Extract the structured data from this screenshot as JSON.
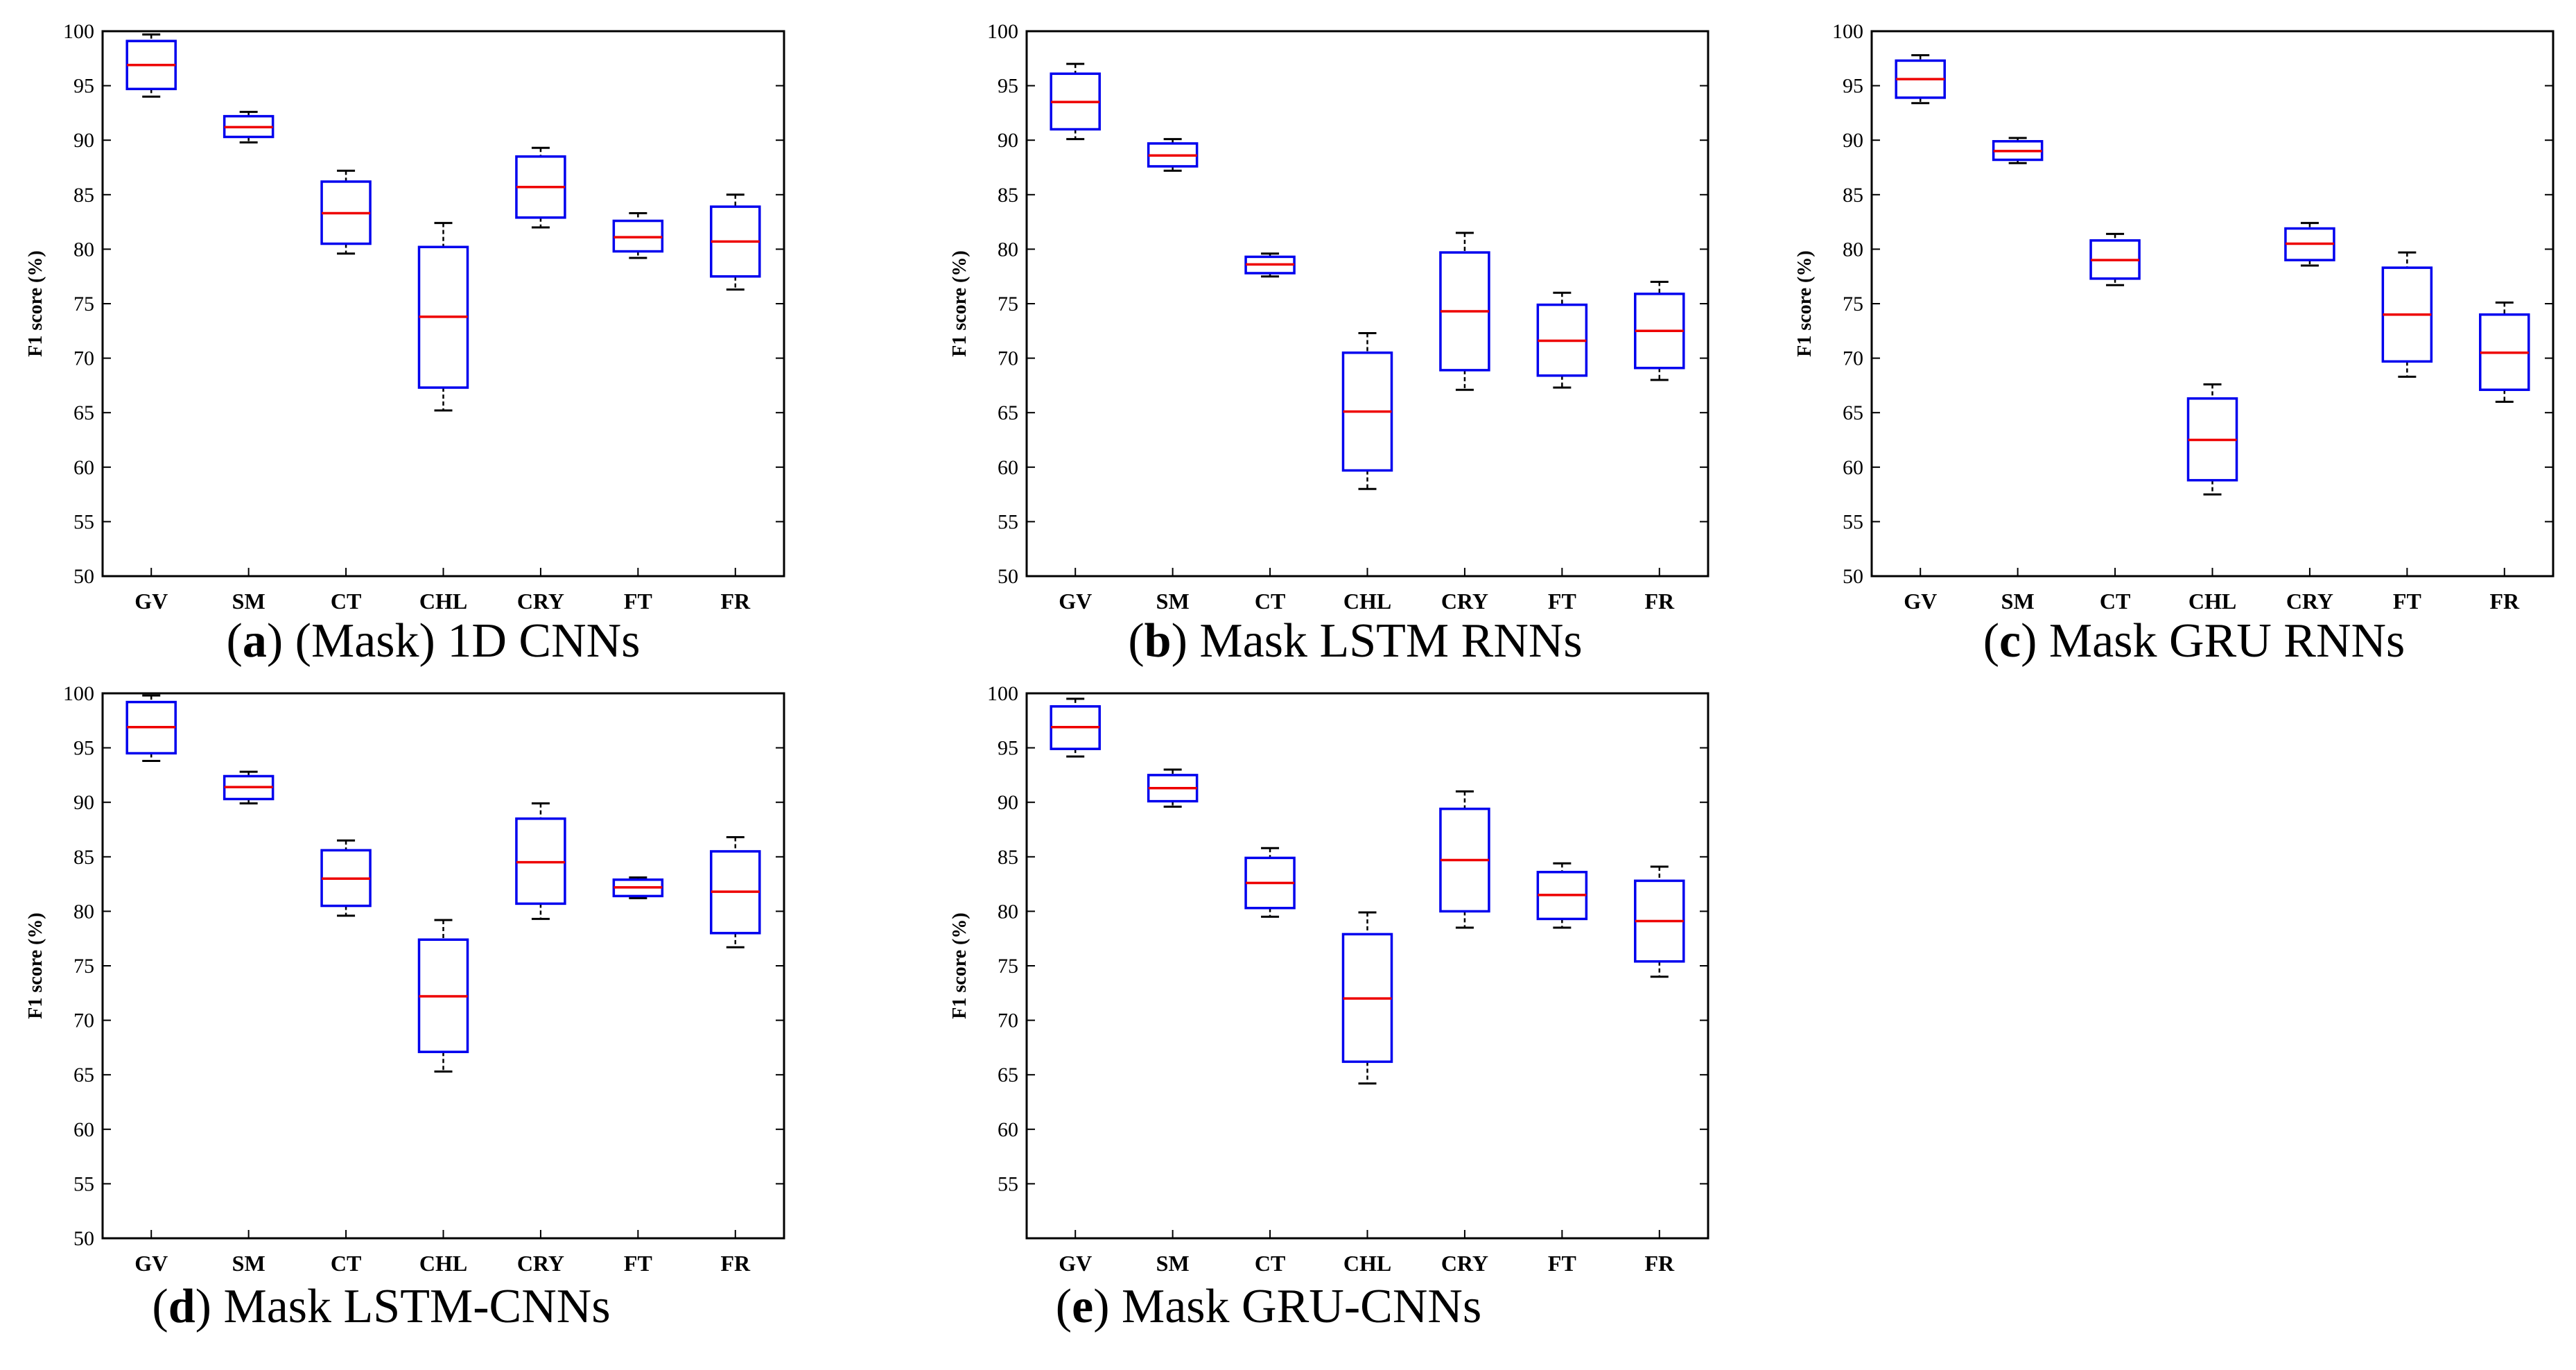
{
  "chart_data": [
    {
      "type": "boxplot",
      "letter": "a",
      "title": ") (Mask) 1D CNNs",
      "ylabel": "F1 score (%)",
      "ylim": [
        50,
        100
      ],
      "yticks": [
        50,
        55,
        60,
        65,
        70,
        75,
        80,
        85,
        90,
        95,
        100
      ],
      "categories": [
        "GV",
        "SM",
        "CT",
        "CHL",
        "CRY",
        "FT",
        "FR"
      ],
      "boxes": [
        {
          "min": 94.0,
          "q1": 94.7,
          "median": 96.9,
          "q3": 99.1,
          "max": 99.7
        },
        {
          "min": 89.8,
          "q1": 90.3,
          "median": 91.2,
          "q3": 92.2,
          "max": 92.6
        },
        {
          "min": 79.6,
          "q1": 80.5,
          "median": 83.3,
          "q3": 86.2,
          "max": 87.2
        },
        {
          "min": 65.2,
          "q1": 67.3,
          "median": 73.8,
          "q3": 80.2,
          "max": 82.4
        },
        {
          "min": 82.0,
          "q1": 82.9,
          "median": 85.7,
          "q3": 88.5,
          "max": 89.3
        },
        {
          "min": 79.2,
          "q1": 79.8,
          "median": 81.1,
          "q3": 82.6,
          "max": 83.3
        },
        {
          "min": 76.3,
          "q1": 77.5,
          "median": 80.7,
          "q3": 83.9,
          "max": 85.0
        }
      ]
    },
    {
      "type": "boxplot",
      "letter": "b",
      "title": ") Mask LSTM RNNs",
      "ylabel": "F1 score (%)",
      "ylim": [
        50,
        100
      ],
      "yticks": [
        50,
        55,
        60,
        65,
        70,
        75,
        80,
        85,
        90,
        95,
        100
      ],
      "categories": [
        "GV",
        "SM",
        "CT",
        "CHL",
        "CRY",
        "FT",
        "FR"
      ],
      "boxes": [
        {
          "min": 90.1,
          "q1": 91.0,
          "median": 93.5,
          "q3": 96.1,
          "max": 97.0
        },
        {
          "min": 87.2,
          "q1": 87.6,
          "median": 88.6,
          "q3": 89.7,
          "max": 90.1
        },
        {
          "min": 77.5,
          "q1": 77.8,
          "median": 78.6,
          "q3": 79.3,
          "max": 79.6
        },
        {
          "min": 58.0,
          "q1": 59.7,
          "median": 65.1,
          "q3": 70.5,
          "max": 72.3
        },
        {
          "min": 67.1,
          "q1": 68.9,
          "median": 74.3,
          "q3": 79.7,
          "max": 81.5
        },
        {
          "min": 67.3,
          "q1": 68.4,
          "median": 71.6,
          "q3": 74.9,
          "max": 76.0
        },
        {
          "min": 68.0,
          "q1": 69.1,
          "median": 72.5,
          "q3": 75.9,
          "max": 77.0
        }
      ]
    },
    {
      "type": "boxplot",
      "letter": "c",
      "title": ") Mask GRU RNNs",
      "ylabel": "F1 score (%)",
      "ylim": [
        50,
        100
      ],
      "yticks": [
        50,
        55,
        60,
        65,
        70,
        75,
        80,
        85,
        90,
        95,
        100
      ],
      "categories": [
        "GV",
        "SM",
        "CT",
        "CHL",
        "CRY",
        "FT",
        "FR"
      ],
      "boxes": [
        {
          "min": 93.4,
          "q1": 93.9,
          "median": 95.6,
          "q3": 97.3,
          "max": 97.8
        },
        {
          "min": 87.9,
          "q1": 88.2,
          "median": 89.0,
          "q3": 89.9,
          "max": 90.2
        },
        {
          "min": 76.7,
          "q1": 77.3,
          "median": 79.0,
          "q3": 80.8,
          "max": 81.4
        },
        {
          "min": 57.5,
          "q1": 58.8,
          "median": 62.5,
          "q3": 66.3,
          "max": 67.6
        },
        {
          "min": 78.5,
          "q1": 79.0,
          "median": 80.5,
          "q3": 81.9,
          "max": 82.4
        },
        {
          "min": 68.3,
          "q1": 69.7,
          "median": 74.0,
          "q3": 78.3,
          "max": 79.7
        },
        {
          "min": 66.0,
          "q1": 67.1,
          "median": 70.5,
          "q3": 74.0,
          "max": 75.1
        }
      ]
    },
    {
      "type": "boxplot",
      "letter": "d",
      "title": ") Mask LSTM-CNNs",
      "ylabel": "F1 score (%)",
      "ylim": [
        50,
        100
      ],
      "yticks": [
        50,
        55,
        60,
        65,
        70,
        75,
        80,
        85,
        90,
        95,
        100
      ],
      "categories": [
        "GV",
        "SM",
        "CT",
        "CHL",
        "CRY",
        "FT",
        "FR"
      ],
      "boxes": [
        {
          "min": 93.8,
          "q1": 94.5,
          "median": 96.9,
          "q3": 99.2,
          "max": 99.8
        },
        {
          "min": 89.9,
          "q1": 90.3,
          "median": 91.4,
          "q3": 92.4,
          "max": 92.8
        },
        {
          "min": 79.6,
          "q1": 80.5,
          "median": 83.0,
          "q3": 85.6,
          "max": 86.5
        },
        {
          "min": 65.3,
          "q1": 67.1,
          "median": 72.2,
          "q3": 77.4,
          "max": 79.2
        },
        {
          "min": 79.3,
          "q1": 80.7,
          "median": 84.5,
          "q3": 88.5,
          "max": 89.9
        },
        {
          "min": 81.2,
          "q1": 81.4,
          "median": 82.2,
          "q3": 82.9,
          "max": 83.1
        },
        {
          "min": 76.7,
          "q1": 78.0,
          "median": 81.8,
          "q3": 85.5,
          "max": 86.8
        }
      ]
    },
    {
      "type": "boxplot",
      "letter": "e",
      "title": ") Mask GRU-CNNs",
      "ylabel": "F1 score (%)",
      "ylim": [
        50,
        100
      ],
      "yticks": [
        55,
        60,
        65,
        70,
        75,
        80,
        85,
        90,
        95,
        100
      ],
      "categories": [
        "GV",
        "SM",
        "CT",
        "CHL",
        "CRY",
        "FT",
        "FR"
      ],
      "boxes": [
        {
          "min": 94.2,
          "q1": 94.9,
          "median": 96.9,
          "q3": 98.8,
          "max": 99.5
        },
        {
          "min": 89.6,
          "q1": 90.1,
          "median": 91.3,
          "q3": 92.5,
          "max": 93.0
        },
        {
          "min": 79.5,
          "q1": 80.3,
          "median": 82.6,
          "q3": 84.9,
          "max": 85.8
        },
        {
          "min": 64.2,
          "q1": 66.2,
          "median": 72.0,
          "q3": 77.9,
          "max": 79.9
        },
        {
          "min": 78.5,
          "q1": 80.0,
          "median": 84.7,
          "q3": 89.4,
          "max": 91.0
        },
        {
          "min": 78.5,
          "q1": 79.3,
          "median": 81.5,
          "q3": 83.6,
          "max": 84.4
        },
        {
          "min": 74.0,
          "q1": 75.4,
          "median": 79.1,
          "q3": 82.8,
          "max": 84.1
        }
      ]
    }
  ]
}
